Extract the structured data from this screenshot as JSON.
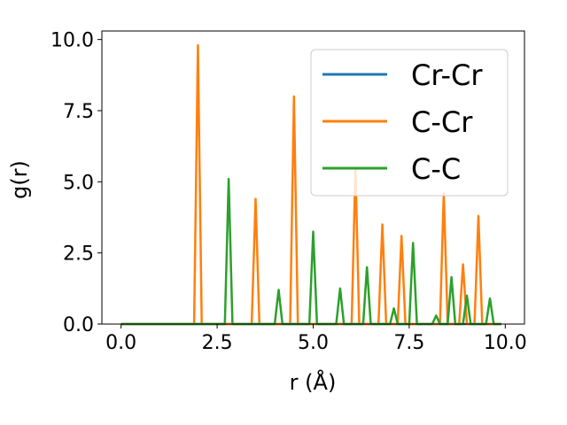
{
  "chart_data": {
    "type": "line",
    "xlabel": "r (Å)",
    "ylabel": "g(r)",
    "xlim": [
      -0.5,
      10.5
    ],
    "ylim": [
      0,
      10.3
    ],
    "x_ticks": [
      "0.0",
      "2.5",
      "5.0",
      "7.5",
      "10.0"
    ],
    "y_ticks": [
      "0.0",
      "2.5",
      "5.0",
      "7.5",
      "10.0"
    ],
    "grid": false,
    "legend_position": "top-right",
    "series": [
      {
        "name": "Cr-Cr",
        "color": "#1f77b4",
        "x": [
          0.0,
          9.9
        ],
        "y": [
          0.0,
          0.0
        ]
      },
      {
        "name": "C-Cr",
        "color": "#ff7f0e",
        "x": [
          0.0,
          1.9,
          2.0,
          2.1,
          3.4,
          3.5,
          3.6,
          4.4,
          4.5,
          4.6,
          6.0,
          6.1,
          6.2,
          6.7,
          6.8,
          6.9,
          7.2,
          7.3,
          7.4,
          8.3,
          8.4,
          8.5,
          8.8,
          8.9,
          9.0,
          9.2,
          9.3,
          9.4,
          9.9
        ],
        "y": [
          0.0,
          0.0,
          9.8,
          0.0,
          0.0,
          4.4,
          0.0,
          0.0,
          8.0,
          0.0,
          0.0,
          5.5,
          0.0,
          0.0,
          3.5,
          0.0,
          0.0,
          3.1,
          0.0,
          0.0,
          4.6,
          0.0,
          0.0,
          2.1,
          0.0,
          0.0,
          3.8,
          0.0,
          0.0
        ]
      },
      {
        "name": "C-C",
        "color": "#2ca02c",
        "x": [
          0.0,
          2.7,
          2.8,
          2.9,
          4.0,
          4.1,
          4.2,
          4.9,
          5.0,
          5.1,
          5.6,
          5.7,
          5.8,
          6.3,
          6.4,
          6.5,
          7.0,
          7.1,
          7.2,
          7.5,
          7.6,
          7.7,
          8.1,
          8.2,
          8.3,
          8.5,
          8.6,
          8.7,
          8.9,
          9.0,
          9.1,
          9.5,
          9.6,
          9.7,
          9.9
        ],
        "y": [
          0.0,
          0.0,
          5.1,
          0.0,
          0.0,
          1.2,
          0.0,
          0.0,
          3.25,
          0.0,
          0.0,
          1.25,
          0.0,
          0.0,
          2.0,
          0.0,
          0.0,
          0.55,
          0.0,
          0.0,
          2.85,
          0.0,
          0.0,
          0.3,
          0.0,
          0.0,
          1.65,
          0.0,
          0.0,
          1.0,
          0.0,
          0.0,
          0.9,
          0.0,
          0.0
        ]
      }
    ]
  }
}
